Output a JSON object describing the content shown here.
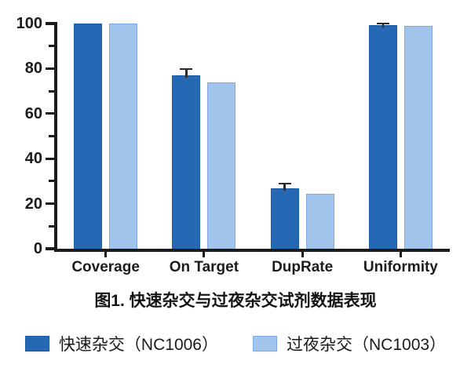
{
  "figure": {
    "caption": "图1. 快速杂交与过夜杂交试剂数据表现"
  },
  "chart_data": {
    "type": "bar",
    "title": "图1. 快速杂交与过夜杂交试剂数据表现",
    "categories": [
      "Coverage",
      "On Target",
      "DupRate",
      "Uniformity"
    ],
    "series": [
      {
        "name": "快速杂交（NC1006）",
        "color": "#2569b4",
        "border_color": "#1d5ba5",
        "values": [
          100,
          77,
          27,
          99.3
        ],
        "errors": [
          0,
          2.8,
          2,
          0.7
        ]
      },
      {
        "name": "过夜杂交（NC1003）",
        "color": "#a0c4ec",
        "border_color": "#7fa9dd",
        "values": [
          100,
          74,
          24.5,
          99
        ],
        "errors": [
          0,
          0,
          0,
          0
        ]
      }
    ],
    "xlabel": "",
    "ylabel": "",
    "ylim": [
      0,
      100
    ],
    "y_major_step": 20,
    "y_minor_step": 10,
    "y_tick_labels": [
      "0",
      "20",
      "40",
      "60",
      "80",
      "100"
    ],
    "grid": false,
    "legend_position": "bottom",
    "axis_color": "#1c1c1c",
    "error_bar_color": "#2b2b2b",
    "background_color": "#ffffff"
  }
}
